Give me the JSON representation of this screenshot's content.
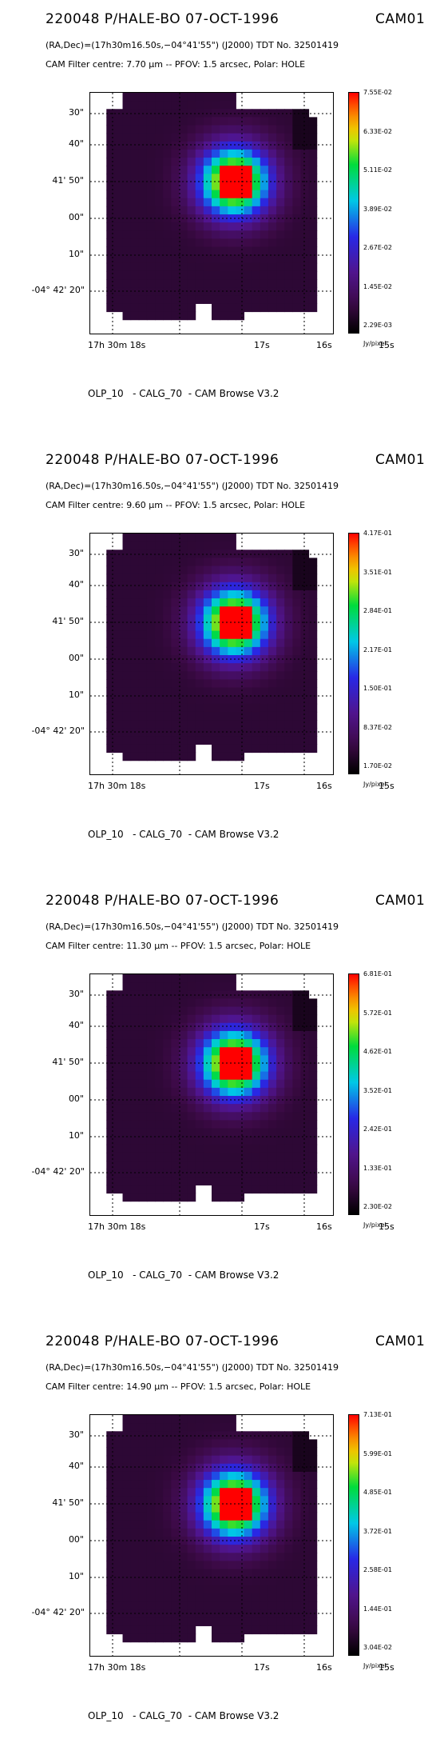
{
  "panels": [
    {
      "title": "220048 P/HALE-BO 07-OCT-1996",
      "instrument": "CAM01",
      "coords": "(RA,Dec)=(17h30m16.50s,−04°41'55\") (J2000) TDT No. 32501419",
      "filter": "CAM  Filter  centre:  7.70 μm --   PFOV:  1.5 arcsec, Polar: HOLE",
      "colorbar_labels": [
        "7.55E-02",
        "6.33E-02",
        "5.11E-02",
        "3.89E-02",
        "2.67E-02",
        "1.45E-02",
        "2.29E-03"
      ],
      "unit": "Jy/pixel",
      "footer": "OLP_10   - CALG_70  - CAM Browse V3.2",
      "peak_fraction": 1.0
    },
    {
      "title": "220048 P/HALE-BO 07-OCT-1996",
      "instrument": "CAM01",
      "coords": "(RA,Dec)=(17h30m16.50s,−04°41'55\") (J2000) TDT No. 32501419",
      "filter": "CAM  Filter  centre:  9.60 μm --   PFOV:  1.5 arcsec, Polar: HOLE",
      "colorbar_labels": [
        "4.17E-01",
        "3.51E-01",
        "2.84E-01",
        "2.17E-01",
        "1.50E-01",
        "8.37E-02",
        "1.70E-02"
      ],
      "unit": "Jy/pixel",
      "footer": "OLP_10   - CALG_70  - CAM Browse V3.2",
      "peak_fraction": 1.0
    },
    {
      "title": "220048 P/HALE-BO 07-OCT-1996",
      "instrument": "CAM01",
      "coords": "(RA,Dec)=(17h30m16.50s,−04°41'55\") (J2000) TDT No. 32501419",
      "filter": "CAM  Filter  centre: 11.30 μm --   PFOV:  1.5 arcsec, Polar: HOLE",
      "colorbar_labels": [
        "6.81E-01",
        "5.72E-01",
        "4.62E-01",
        "3.52E-01",
        "2.42E-01",
        "1.33E-01",
        "2.30E-02"
      ],
      "unit": "Jy/pixel",
      "footer": "OLP_10   - CALG_70  - CAM Browse V3.2",
      "peak_fraction": 1.0
    },
    {
      "title": "220048 P/HALE-BO 07-OCT-1996",
      "instrument": "CAM01",
      "coords": "(RA,Dec)=(17h30m16.50s,−04°41'55\") (J2000) TDT No. 32501419",
      "filter": "CAM  Filter  centre: 14.90 μm --   PFOV:  1.5 arcsec, Polar: HOLE",
      "colorbar_labels": [
        "7.13E-01",
        "5.99E-01",
        "4.85E-01",
        "3.72E-01",
        "2.58E-01",
        "1.44E-01",
        "3.04E-02"
      ],
      "unit": "Jy/pixel",
      "footer": "OLP_10   - CALG_70  - CAM Browse V3.2",
      "peak_fraction": 1.0
    }
  ],
  "y_ticks": [
    "30\"",
    "40\"",
    "41' 50\"",
    "00\"",
    "10\"",
    "-04° 42' 20\""
  ],
  "x_ticks": [
    "17h 30m 18s",
    "17s",
    "16s",
    "15s"
  ]
}
